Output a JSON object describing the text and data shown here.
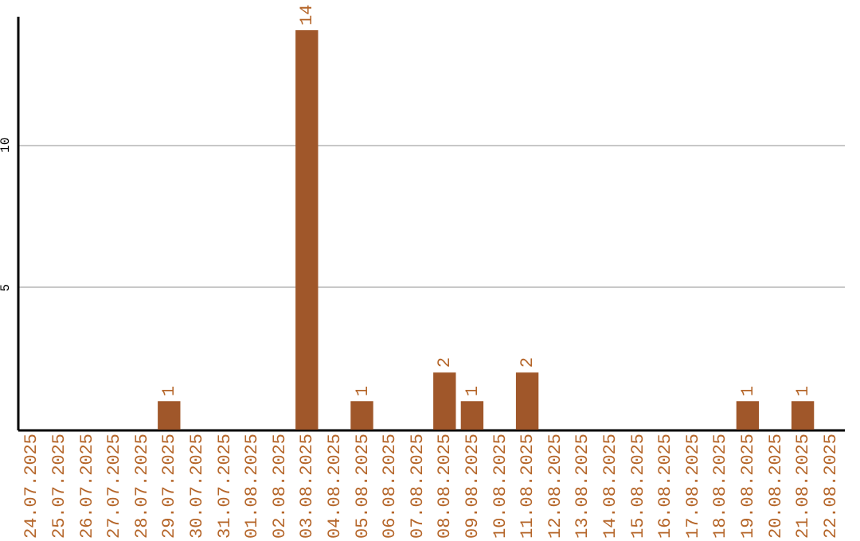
{
  "chart_data": {
    "type": "bar",
    "categories": [
      "24.07.2025",
      "25.07.2025",
      "26.07.2025",
      "27.07.2025",
      "28.07.2025",
      "29.07.2025",
      "30.07.2025",
      "31.07.2025",
      "01.08.2025",
      "02.08.2025",
      "03.08.2025",
      "04.08.2025",
      "05.08.2025",
      "06.08.2025",
      "07.08.2025",
      "08.08.2025",
      "09.08.2025",
      "10.08.2025",
      "11.08.2025",
      "12.08.2025",
      "13.08.2025",
      "14.08.2025",
      "15.08.2025",
      "16.08.2025",
      "17.08.2025",
      "18.08.2025",
      "19.08.2025",
      "20.08.2025",
      "21.08.2025",
      "22.08.2025"
    ],
    "values": [
      0,
      0,
      0,
      0,
      0,
      1,
      0,
      0,
      0,
      0,
      14,
      0,
      1,
      0,
      0,
      2,
      1,
      0,
      2,
      0,
      0,
      0,
      0,
      0,
      0,
      0,
      1,
      0,
      1,
      0
    ],
    "value_labels": [
      null,
      null,
      null,
      null,
      null,
      "1",
      null,
      null,
      null,
      null,
      "14",
      null,
      "1",
      null,
      null,
      "2",
      "1",
      null,
      "2",
      null,
      null,
      null,
      null,
      null,
      null,
      null,
      "1",
      null,
      "1",
      null
    ],
    "color": "#a0572a",
    "ylim": [
      0,
      14.5
    ],
    "yticks": [
      5,
      10
    ],
    "grid": "y"
  }
}
